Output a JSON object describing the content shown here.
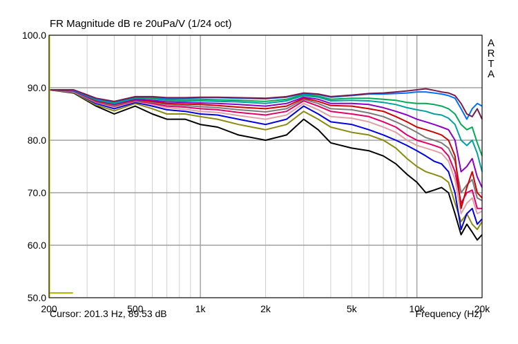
{
  "window": {
    "title": "FR Magnitude dB re 20uPa/V (1/24 oct)",
    "watermark": "ARTA",
    "cursor_readout": "Cursor: 201.3 Hz, 89.53 dB"
  },
  "chart_data": {
    "type": "line",
    "title": "FR Magnitude dB re 20uPa/V (1/24 oct)",
    "xlabel": "Frequency (Hz)",
    "ylabel": "",
    "xscale": "log",
    "xlim": [
      200,
      20000
    ],
    "ylim": [
      50,
      100
    ],
    "grid": true,
    "x_ticks": [
      {
        "value": 200,
        "label": "200"
      },
      {
        "value": 500,
        "label": "500"
      },
      {
        "value": 1000,
        "label": "1k"
      },
      {
        "value": 2000,
        "label": "2k"
      },
      {
        "value": 5000,
        "label": "5k"
      },
      {
        "value": 10000,
        "label": "10k"
      },
      {
        "value": 20000,
        "label": "20k"
      }
    ],
    "x_major_grid": [
      200,
      1000,
      10000,
      20000
    ],
    "x_minor_grid": [
      300,
      400,
      500,
      600,
      700,
      800,
      900,
      2000,
      3000,
      4000,
      5000,
      6000,
      7000,
      8000,
      9000
    ],
    "y_ticks": [
      {
        "value": 100,
        "label": "100.0"
      },
      {
        "value": 90,
        "label": "90.0"
      },
      {
        "value": 80,
        "label": "80.0"
      },
      {
        "value": 70,
        "label": "70.0"
      },
      {
        "value": 60,
        "label": "60.0"
      },
      {
        "value": 50,
        "label": "50.0"
      }
    ],
    "cursor": {
      "x": 201.3,
      "y": 89.53,
      "color": "#c8c800"
    },
    "marker": {
      "x": [
        200,
        258
      ],
      "y": 50.9,
      "color": "#b0b000"
    },
    "x": [
      200,
      260,
      330,
      400,
      500,
      600,
      700,
      850,
      1000,
      1200,
      1500,
      2000,
      2500,
      3000,
      3500,
      4000,
      5000,
      6000,
      7000,
      8000,
      9000,
      10000,
      11000,
      12000,
      13000,
      14000,
      15000,
      16000,
      17000,
      18000,
      19000,
      20000
    ],
    "series": [
      {
        "color": "#000000",
        "values": [
          89.6,
          89.0,
          86.5,
          85.0,
          86.5,
          85.0,
          84.0,
          84.0,
          83.0,
          82.5,
          81.0,
          80.0,
          81.0,
          84.0,
          82.0,
          79.5,
          78.5,
          78.0,
          77.0,
          75.5,
          73.5,
          72.0,
          70.0,
          70.5,
          71.0,
          70.0,
          66.0,
          62.0,
          64.0,
          62.5,
          61.0,
          62.0
        ]
      },
      {
        "color": "#8a8a10",
        "values": [
          89.6,
          89.1,
          86.7,
          85.6,
          87.0,
          86.0,
          85.0,
          85.0,
          84.5,
          84.0,
          83.0,
          82.0,
          83.0,
          85.5,
          84.0,
          82.5,
          81.5,
          81.0,
          80.0,
          78.5,
          76.5,
          75.0,
          74.0,
          73.5,
          73.0,
          72.0,
          68.0,
          64.5,
          66.0,
          64.0,
          63.0,
          64.5
        ]
      },
      {
        "color": "#0000dd",
        "values": [
          89.6,
          89.2,
          87.0,
          86.0,
          87.2,
          86.5,
          85.8,
          85.5,
          85.0,
          84.8,
          84.0,
          83.0,
          84.0,
          86.5,
          85.0,
          83.5,
          83.0,
          82.0,
          81.0,
          80.0,
          79.0,
          78.0,
          77.0,
          76.0,
          75.5,
          74.0,
          70.0,
          63.0,
          66.0,
          67.0,
          64.0,
          65.0
        ]
      },
      {
        "color": "#e0a0a8",
        "values": [
          89.6,
          89.2,
          87.2,
          86.3,
          87.4,
          86.8,
          86.2,
          85.9,
          85.5,
          85.3,
          84.7,
          84.0,
          84.8,
          87.0,
          85.8,
          84.5,
          84.2,
          83.5,
          82.5,
          81.5,
          80.0,
          79.0,
          78.5,
          78.0,
          77.5,
          76.0,
          72.5,
          66.0,
          68.0,
          69.0,
          66.0,
          66.5
        ]
      },
      {
        "color": "#e0006a",
        "values": [
          89.6,
          89.3,
          87.3,
          86.5,
          87.5,
          87.0,
          86.5,
          86.3,
          86.0,
          85.8,
          85.3,
          84.8,
          85.5,
          87.5,
          86.5,
          85.5,
          85.0,
          84.5,
          83.5,
          82.5,
          81.0,
          80.0,
          79.5,
          79.0,
          78.5,
          77.0,
          74.0,
          68.0,
          70.0,
          70.5,
          67.0,
          67.0
        ]
      },
      {
        "color": "#7a7a7a",
        "values": [
          89.6,
          89.3,
          87.4,
          86.6,
          87.6,
          87.2,
          86.8,
          86.6,
          86.4,
          86.2,
          85.8,
          85.4,
          86.0,
          87.8,
          87.0,
          86.0,
          85.8,
          85.2,
          84.5,
          83.5,
          82.5,
          81.5,
          80.5,
          80.0,
          79.5,
          78.5,
          76.0,
          70.0,
          71.5,
          72.5,
          69.0,
          68.5
        ]
      },
      {
        "color": "#d00000",
        "values": [
          89.6,
          89.4,
          87.5,
          86.8,
          87.7,
          87.4,
          87.0,
          86.9,
          86.8,
          86.6,
          86.3,
          86.0,
          86.5,
          88.0,
          87.4,
          86.6,
          86.5,
          86.0,
          85.5,
          84.5,
          83.5,
          82.5,
          82.0,
          81.5,
          81.0,
          80.0,
          77.0,
          67.0,
          71.0,
          74.0,
          70.0,
          69.0
        ]
      },
      {
        "color": "#8a00c8",
        "values": [
          89.6,
          89.4,
          87.6,
          86.9,
          87.8,
          87.6,
          87.3,
          87.2,
          87.1,
          87.0,
          86.8,
          86.5,
          87.0,
          88.2,
          87.8,
          87.0,
          87.0,
          86.8,
          86.2,
          85.5,
          84.8,
          84.0,
          83.5,
          83.0,
          82.5,
          82.0,
          80.0,
          74.0,
          75.0,
          76.5,
          73.0,
          71.0
        ]
      },
      {
        "color": "#00a0a0",
        "values": [
          89.6,
          89.5,
          87.7,
          87.0,
          88.0,
          87.9,
          87.6,
          87.5,
          87.5,
          87.4,
          87.3,
          87.0,
          87.5,
          88.5,
          88.2,
          87.5,
          87.6,
          87.5,
          87.2,
          86.8,
          86.2,
          85.8,
          85.5,
          85.0,
          84.8,
          84.2,
          83.0,
          80.0,
          79.0,
          80.0,
          77.5,
          74.0
        ]
      },
      {
        "color": "#00aa55",
        "values": [
          89.6,
          89.5,
          87.8,
          87.2,
          88.1,
          88.0,
          87.8,
          87.8,
          87.8,
          87.7,
          87.6,
          87.4,
          87.8,
          88.7,
          88.4,
          87.8,
          88.0,
          88.0,
          87.8,
          87.6,
          87.2,
          87.0,
          87.0,
          86.8,
          86.5,
          86.0,
          85.0,
          83.0,
          82.0,
          82.5,
          79.5,
          77.0
        ]
      },
      {
        "color": "#0070ff",
        "values": [
          89.6,
          89.5,
          87.9,
          87.3,
          88.2,
          88.2,
          88.0,
          88.0,
          88.1,
          88.1,
          88.0,
          87.9,
          88.2,
          88.9,
          88.7,
          88.2,
          88.5,
          88.8,
          88.8,
          88.9,
          89.0,
          89.2,
          89.2,
          89.0,
          88.8,
          88.5,
          88.0,
          86.0,
          84.0,
          86.0,
          87.0,
          86.5
        ]
      },
      {
        "color": "#7a1a4a",
        "values": [
          89.6,
          89.6,
          88.0,
          87.4,
          88.3,
          88.3,
          88.1,
          88.1,
          88.2,
          88.2,
          88.1,
          88.0,
          88.3,
          89.0,
          88.8,
          88.3,
          88.6,
          88.9,
          89.0,
          89.2,
          89.4,
          89.6,
          89.8,
          89.5,
          89.2,
          89.0,
          88.5,
          87.0,
          85.0,
          84.5,
          86.0,
          84.0
        ]
      }
    ]
  }
}
